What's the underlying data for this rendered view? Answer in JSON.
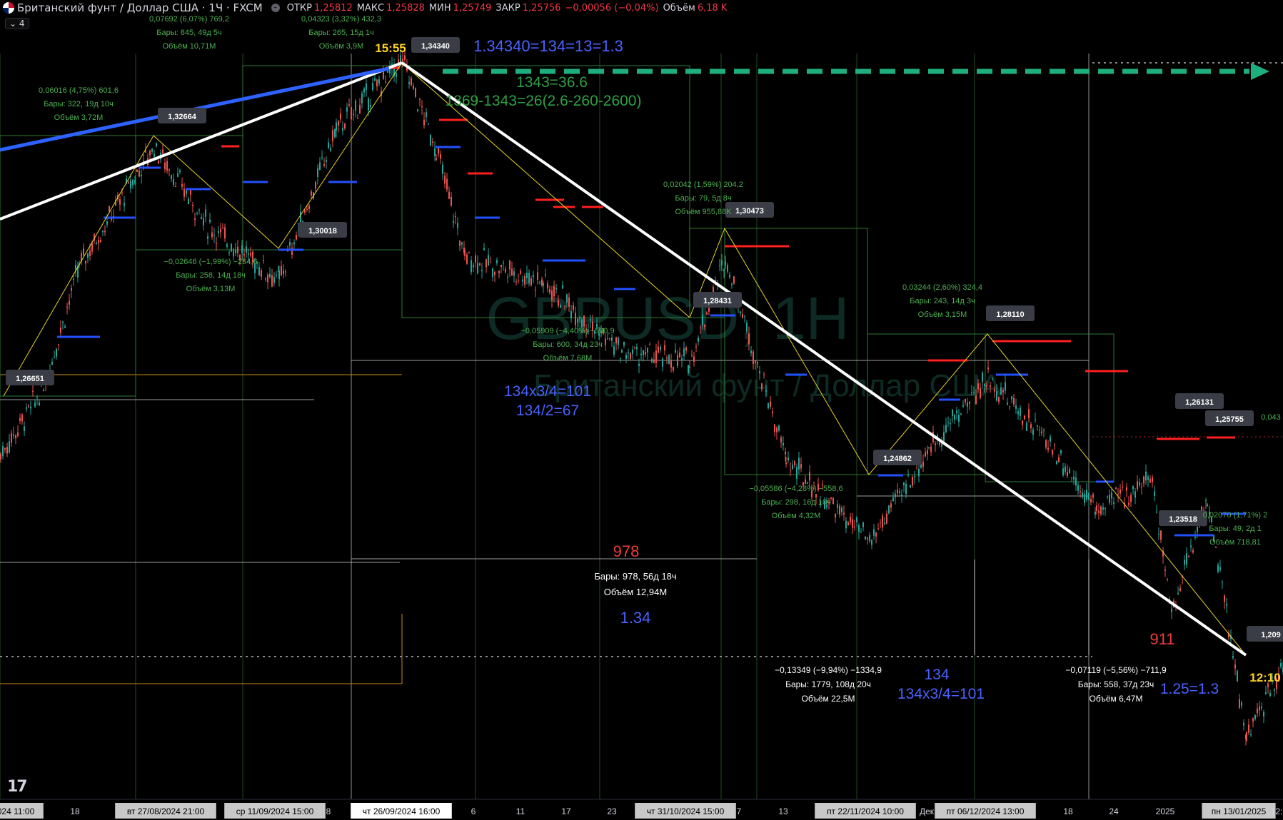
{
  "header": {
    "symbol": "Британский фунт / Доллар США · 1Ч · FXCM",
    "open_label": "ОТКР",
    "open": "1,25812",
    "high_label": "МАКС",
    "high": "1,25828",
    "low_label": "МИН",
    "low": "1,25749",
    "close_label": "ЗАКР",
    "close": "1,25756",
    "change": "−0,00056 (−0,04%)",
    "volume_label": "Объём",
    "volume": "6,18 K",
    "collapse_chip": "4"
  },
  "watermark": {
    "ticker": "GBPUSD, 1H",
    "name": "Британский фунт / Доллар США"
  },
  "chart_data": {
    "type": "line",
    "x_tick_labels": [
      "024 11:00",
      "18",
      "вт 27/08/2024 21:00",
      "ср 11/09/2024 15:00",
      "8",
      "чт 26/09/2024 16:00",
      "6",
      "11",
      "17",
      "23",
      "чт 31/10/2024 15:00",
      "7",
      "13",
      "пт 22/11/2024 10:00",
      "Дек",
      "пт 06/12/2024 13:00",
      "18",
      "24",
      "2025",
      "пн 13/01/2025",
      "12:"
    ],
    "series": [
      {
        "x": [
          "27/08/2024",
          "11/09/2024",
          "26/09/2024",
          "31/10/2024",
          "05/11/2024",
          "22/11/2024",
          "06/12/2024",
          "27/12/2024",
          "31/12/2024",
          "13/01/2025"
        ],
        "values": [
          1.32664,
          1.30018,
          1.3434,
          1.28431,
          1.30473,
          1.24862,
          1.2811,
          1.26131,
          1.25755,
          1.2099
        ]
      }
    ],
    "pivot_labels": [
      "1,26651",
      "1,32664",
      "1,30018",
      "1,34340",
      "1,30473",
      "1,28431",
      "1,28110",
      "1,24862",
      "1,26131",
      "1,25755",
      "1,23518",
      "1,209"
    ],
    "measurements": [
      {
        "l1": "0,06016 (4,75%) 601,6",
        "l2": "Бары: 322, 19д 10ч",
        "l3": "Объём 3,72M"
      },
      {
        "l1": "0,07692 (6,07%) 769,2",
        "l2": "Бары: 845, 49д 5ч",
        "l3": "Объём 10,71M"
      },
      {
        "l1": "0,04323 (3,32%) 432,3",
        "l2": "Бары: 265, 15д 1ч",
        "l3": "Объём 3,9M"
      },
      {
        "l1": "−0,02646 (−1,99%) −264,6",
        "l2": "Бары: 258, 14д 18ч",
        "l3": "Объём 3,13M"
      },
      {
        "l1": "0,02042 (1,59%) 204,2",
        "l2": "Бары: 79, 5д 8ч",
        "l3": "Объём 955,88K"
      },
      {
        "l1": "−0,05909 (−4,40%) −590,9",
        "l2": "Бары: 600, 34д 23ч",
        "l3": "Объём 7,68M"
      },
      {
        "l1": "0,03244 (2,60%) 324,4",
        "l2": "Бары: 243, 14д 3ч",
        "l3": "Объём 3,15M"
      },
      {
        "l1": "−0,05586 (−4,28%) −558,6",
        "l2": "Бары: 298, 16д 10ч",
        "l3": "Объём 4,32M"
      },
      {
        "l1": "0,02070 (1,71%) 2",
        "l2": "Бары: 49, 2д 1",
        "l3": "Объём 718,81"
      },
      {
        "l1": "0,043",
        "l2": "",
        "l3": ""
      }
    ],
    "big_measurements": [
      {
        "head": "978",
        "l2": "Бары: 978, 56д 18ч",
        "l3": "Объём 12,94M",
        "note": "1.34"
      },
      {
        "head": "",
        "l1": "−0,13349 (−9,94%) −1334,9",
        "l2": "Бары: 1779, 108д 20ч",
        "l3": "Объём 22,5M"
      },
      {
        "head": "911",
        "l1": "−0,07119 (−5,56%) −711,9",
        "l2": "Бары: 558, 37д 23ч",
        "l3": "Объём 6,47M"
      }
    ],
    "annotations": [
      "1.34340=134=13=1.3",
      "1343=36.6",
      "1369-1343=26(2.6-260-2600)",
      "134x3/4=101",
      "134/2=67",
      "134",
      "134x3/4=101",
      "1.25=1.3"
    ],
    "time_markers": [
      "15:55",
      "12:10"
    ]
  },
  "colors": {
    "up": "#26a69a",
    "down": "#ef5350",
    "resistance": "#ff1f1f",
    "support": "#2451ff",
    "white_line": "#ffffff",
    "blue_line": "#2e62ff",
    "green_dash": "#1fae7f",
    "yellow": "#e8d22a",
    "measure_green": "#4caf50",
    "anno_blue": "#4a62ff",
    "anno_green": "#2ea043"
  }
}
